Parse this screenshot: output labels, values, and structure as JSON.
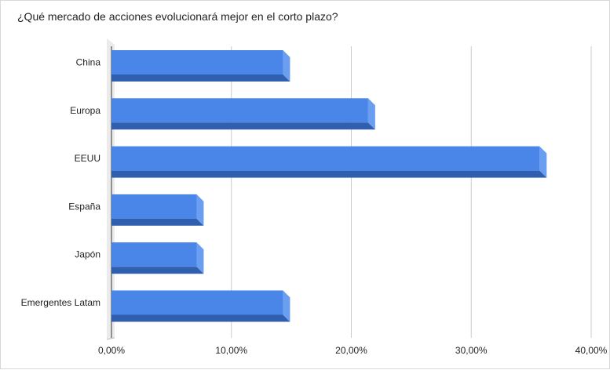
{
  "chart_data": {
    "type": "bar",
    "orientation": "horizontal",
    "style": "3d",
    "title": "¿Qué mercado de acciones evolucionará mejor en el corto plazo?",
    "categories": [
      "China",
      "Europa",
      "EEUU",
      "España",
      "Japón",
      "Emergentes Latam"
    ],
    "values": [
      14.3,
      21.4,
      35.7,
      7.1,
      7.1,
      14.3
    ],
    "value_unit": "%",
    "xlim": [
      0,
      40
    ],
    "x_ticks": [
      0,
      10,
      20,
      30,
      40
    ],
    "x_tick_labels": [
      "0,00%",
      "10,00%",
      "20,00%",
      "30,00%",
      "40,00%"
    ],
    "xlabel": "",
    "ylabel": "",
    "grid": "vertical",
    "legend": "none",
    "colors": {
      "bar_front": "#4a86e8",
      "bar_top": "#2f5fae",
      "bar_side": "#6a9ef0",
      "grid": "#cccccc",
      "wall": "#ebebeb",
      "axis_text": "#222222"
    }
  }
}
